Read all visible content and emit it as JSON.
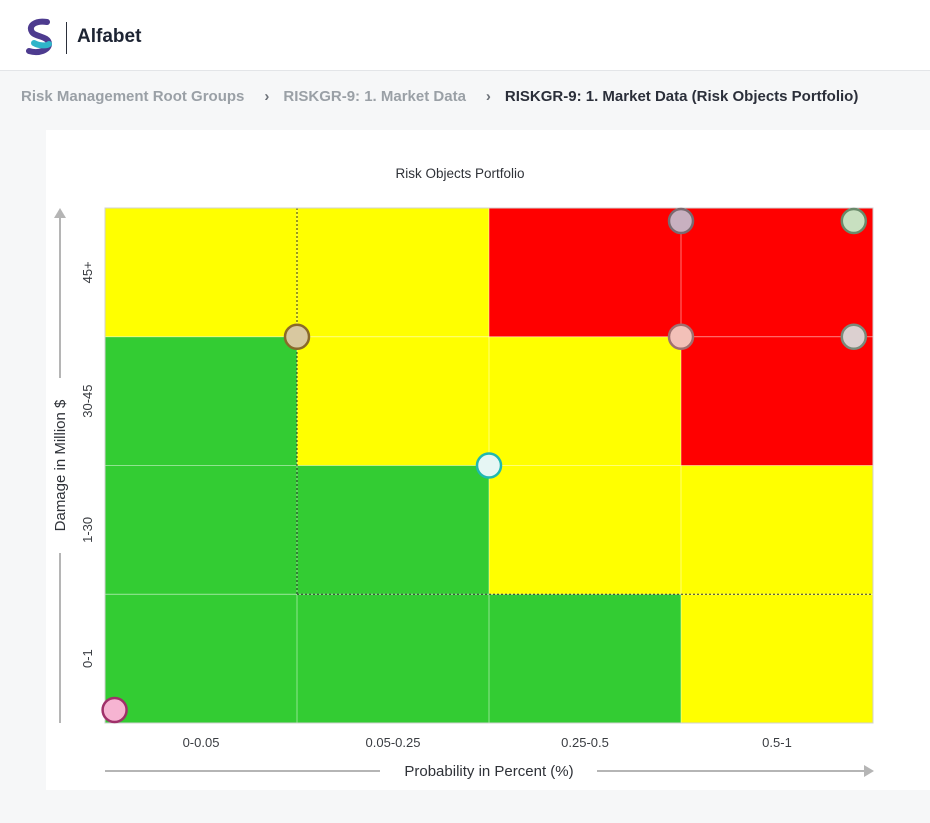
{
  "app": {
    "title": "Alfabet"
  },
  "breadcrumb": [
    {
      "label": "Risk Management Root Groups"
    },
    {
      "label": "RISKGR-9: 1. Market Data"
    },
    {
      "label": "RISKGR-9: 1. Market Data (Risk Objects Portfolio)"
    }
  ],
  "colors": {
    "green": "#33cc33",
    "yellow": "#ffff00",
    "red": "#ff0000"
  },
  "chart_data": {
    "type": "heatmap",
    "title": "Risk Objects Portfolio",
    "xlabel": "Probability in Percent (%)",
    "ylabel": "Damage in Million $",
    "x_categories": [
      "0-0.05",
      "0.05-0.25",
      "0.25-0.5",
      "0.5-1"
    ],
    "y_categories": [
      "0-1",
      "1-30",
      "30-45",
      "45+"
    ],
    "cells": [
      [
        "green",
        "green",
        "green",
        "yellow"
      ],
      [
        "green",
        "green",
        "yellow",
        "yellow"
      ],
      [
        "green",
        "yellow",
        "yellow",
        "red"
      ],
      [
        "yellow",
        "yellow",
        "red",
        "red"
      ]
    ],
    "points": [
      {
        "x": 0.05,
        "y": 0,
        "color": "#f6b4d2",
        "stroke": "#a0306a"
      },
      {
        "x": 1,
        "y": 3,
        "color": "#d8c8a0",
        "stroke": "#8a6a2a"
      },
      {
        "x": 2,
        "y": 2,
        "color": "#e6f6f4",
        "stroke": "#20b8b0"
      },
      {
        "x": 3,
        "y": 3,
        "color": "#f2c0b8",
        "stroke": "#a07070"
      },
      {
        "x": 3,
        "y": 4,
        "color": "#c8b0c0",
        "stroke": "#7a6a70"
      },
      {
        "x": 3.9,
        "y": 3,
        "color": "#dcd0d0",
        "stroke": "#7a8a7a"
      },
      {
        "x": 3.9,
        "y": 4,
        "color": "#c8e0c0",
        "stroke": "#6a8a6a"
      }
    ]
  }
}
